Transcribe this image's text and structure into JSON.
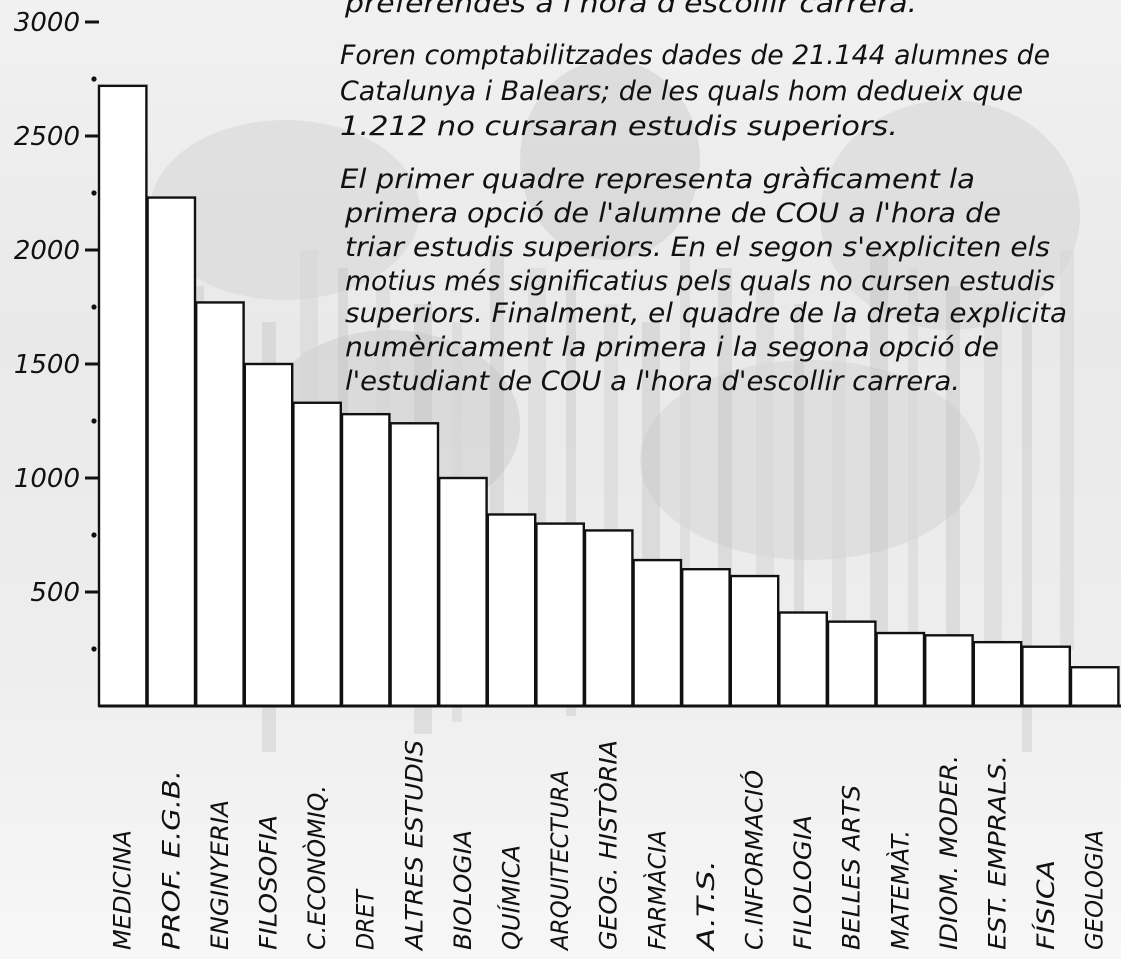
{
  "chart_data": {
    "type": "bar",
    "title": "",
    "xlabel": "",
    "ylabel": "",
    "ylim": [
      0,
      3000
    ],
    "yticks": [
      500,
      1000,
      1500,
      2000,
      2500,
      3000
    ],
    "grid": false,
    "legend": "none",
    "categories": [
      "MEDICINA",
      "PROF. E.G.B.",
      "ENGINYERIA",
      "FILOSOFIA",
      "C.ECONÒMIQ.",
      "DRET",
      "ALTRES ESTUDIS",
      "BIOLOGIA",
      "QUÍMICA",
      "ARQUITECTURA",
      "GEOG. HISTÒRIA",
      "FARMÀCIA",
      "A.T.S.",
      "C.INFORMACIÓ",
      "FILOLOGIA",
      "BELLES ARTS",
      "MATEMÀT.",
      "IDIOM. MODER.",
      "EST. EMPRALS.",
      "FÍSICA",
      "GEOLOGIA"
    ],
    "values": [
      2720,
      2230,
      1770,
      1500,
      1330,
      1280,
      1240,
      1000,
      840,
      800,
      770,
      640,
      600,
      570,
      410,
      370,
      320,
      310,
      280,
      260,
      170
    ],
    "bar_color": "#ffffff",
    "edge_color": "#111111"
  },
  "notes": {
    "lines": [
      "preferendes a l'hora d'escollir carrera.",
      "Foren comptabilitzades dades de 21.144 alumnes de",
      "Catalunya i Balears; de les quals hom dedueix que",
      "1.212 no cursaran estudis superiors.",
      "El primer quadre representa gràficament la",
      "primera opció de l'alumne de COU a l'hora de",
      "triar estudis superiors. En el segon s'expliciten els",
      "motius més significatius pels quals no cursen estudis",
      "superiors. Finalment, el quadre de la dreta explicita",
      "numèricament la primera i la segona opció de",
      "l'estudiant de COU a l'hora d'escollir carrera."
    ]
  }
}
